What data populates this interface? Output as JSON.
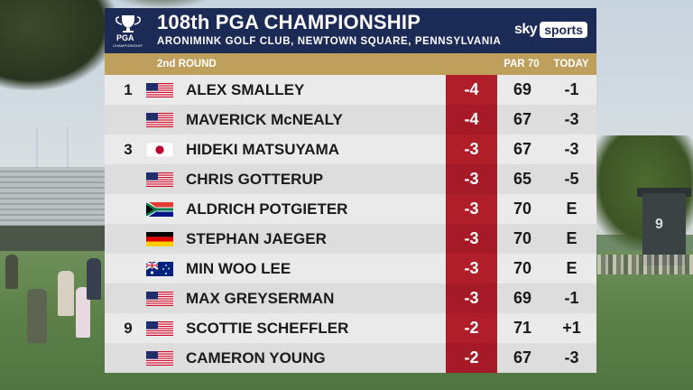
{
  "header": {
    "title": "108th PGA CHAMPIONSHIP",
    "subtitle": "ARONIMINK GOLF CLUB, NEWTOWN SQUARE, PENNSYLVANIA",
    "logo_text": "PGA",
    "logo_subtext": "CHAMPIONSHIP",
    "broadcaster": {
      "sky": "sky",
      "sports": "sports"
    }
  },
  "subheader": {
    "round": "2nd ROUND",
    "col_par": "PAR 70",
    "col_today": "TODAY"
  },
  "scene": {
    "tower_number": "9"
  },
  "rows": [
    {
      "pos": "1",
      "flag": "usa",
      "name": "ALEX SMALLEY",
      "to_par": "-4",
      "round_score": "69",
      "today": "-1"
    },
    {
      "pos": "",
      "flag": "usa",
      "name": "MAVERICK McNEALY",
      "to_par": "-4",
      "round_score": "67",
      "today": "-3"
    },
    {
      "pos": "3",
      "flag": "japan",
      "name": "HIDEKI MATSUYAMA",
      "to_par": "-3",
      "round_score": "67",
      "today": "-3"
    },
    {
      "pos": "",
      "flag": "usa",
      "name": "CHRIS GOTTERUP",
      "to_par": "-3",
      "round_score": "65",
      "today": "-5"
    },
    {
      "pos": "",
      "flag": "south-africa",
      "name": "ALDRICH POTGIETER",
      "to_par": "-3",
      "round_score": "70",
      "today": "E"
    },
    {
      "pos": "",
      "flag": "germany",
      "name": "STEPHAN JAEGER",
      "to_par": "-3",
      "round_score": "70",
      "today": "E"
    },
    {
      "pos": "",
      "flag": "australia",
      "name": "MIN WOO LEE",
      "to_par": "-3",
      "round_score": "70",
      "today": "E"
    },
    {
      "pos": "",
      "flag": "usa",
      "name": "MAX GREYSERMAN",
      "to_par": "-3",
      "round_score": "69",
      "today": "-1"
    },
    {
      "pos": "9",
      "flag": "usa",
      "name": "SCOTTIE SCHEFFLER",
      "to_par": "-2",
      "round_score": "71",
      "today": "+1"
    },
    {
      "pos": "",
      "flag": "usa",
      "name": "CAMERON YOUNG",
      "to_par": "-2",
      "round_score": "67",
      "today": "-3"
    }
  ],
  "colors": {
    "header_navy": "#1c2a56",
    "subheader_gold": "#bf9f5c",
    "score_red": "#b01e2a",
    "row_light": "#eaeaea",
    "row_alt": "#dddddd"
  }
}
